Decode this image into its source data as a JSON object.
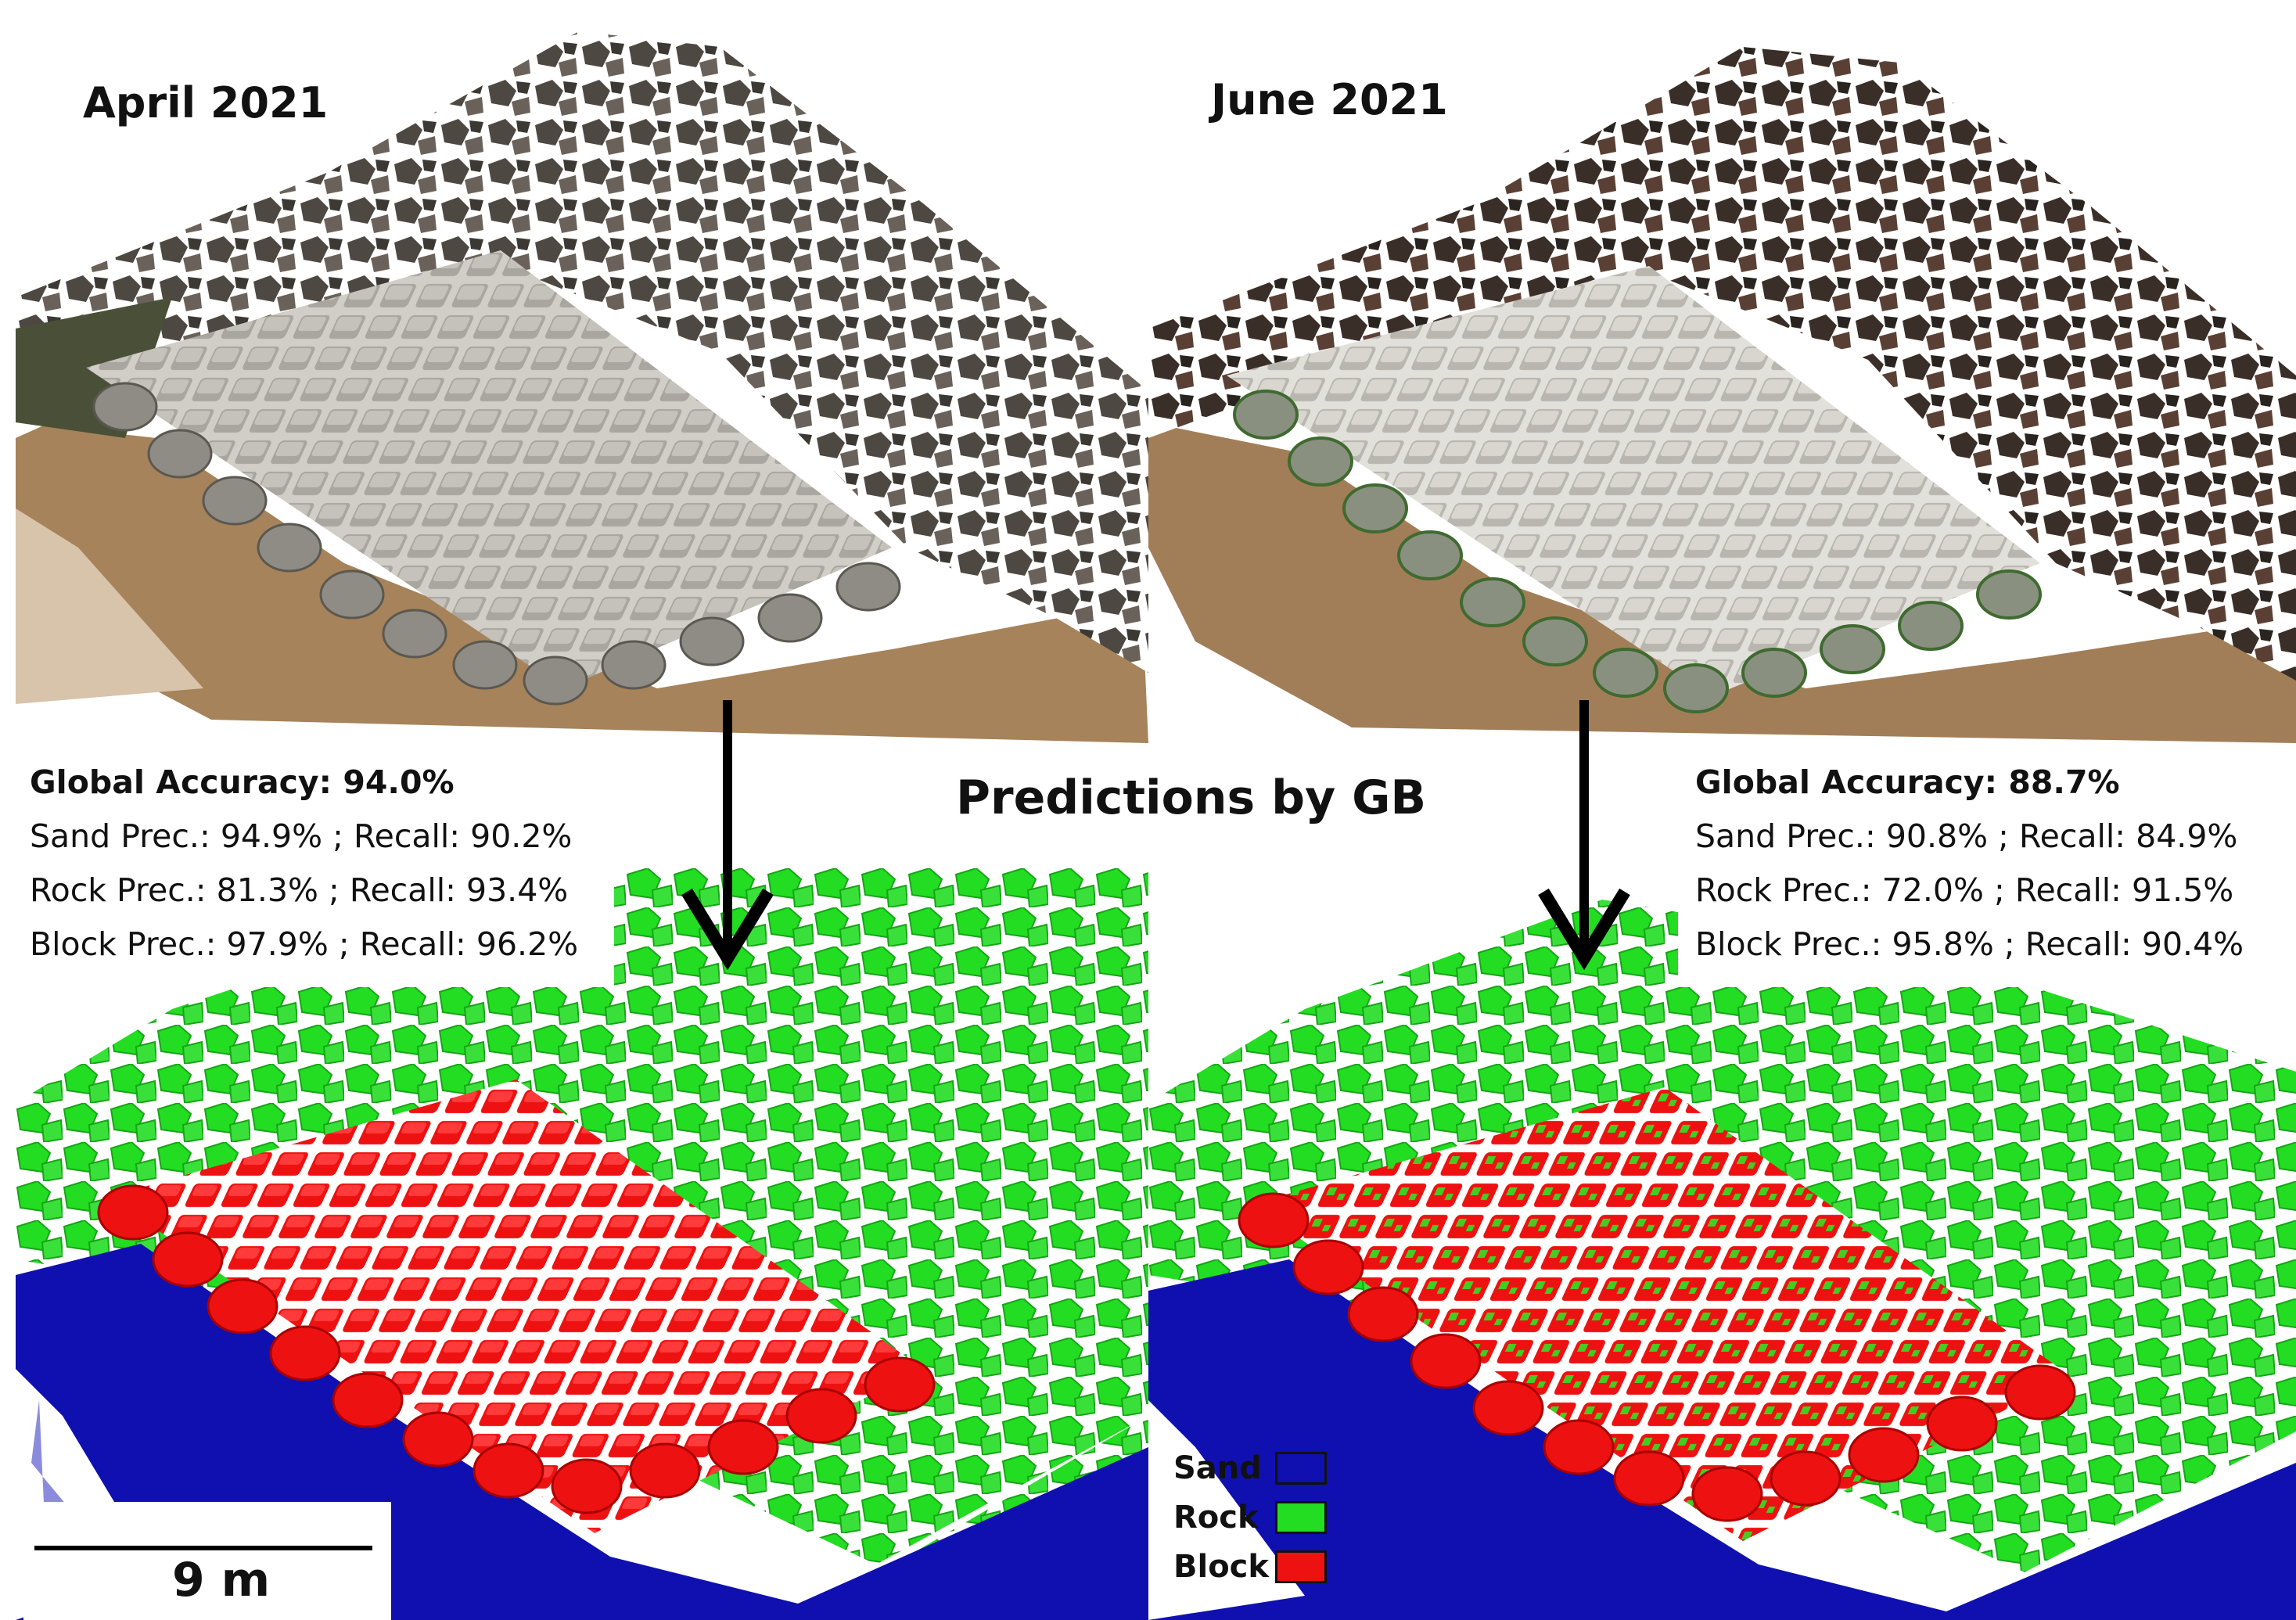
{
  "panels": {
    "top_left": {
      "title": "April 2021"
    },
    "top_right": {
      "title": "June 2021"
    }
  },
  "center_title": "Predictions by GB",
  "metrics_april": {
    "global_label": "Global Accuracy:",
    "global_value": "94.0%",
    "rows": [
      {
        "label": "Sand Prec.:",
        "precision": "94.9%",
        "recall_label": "Recall:",
        "recall": "90.2%"
      },
      {
        "label": "Rock Prec.:",
        "precision": "81.3%",
        "recall_label": "Recall:",
        "recall": "93.4%"
      },
      {
        "label": "Block Prec.:",
        "precision": "97.9%",
        "recall_label": "Recall:",
        "recall": "96.2%"
      }
    ]
  },
  "metrics_june": {
    "global_label": "Global Accuracy:",
    "global_value": "88.7%",
    "rows": [
      {
        "label": "Sand Prec.:",
        "precision": "90.8%",
        "recall_label": "Recall:",
        "recall": "84.9%"
      },
      {
        "label": "Rock Prec.:",
        "precision": "72.0%",
        "recall_label": "Recall:",
        "recall": "91.5%"
      },
      {
        "label": "Block Prec.:",
        "precision": "95.8%",
        "recall_label": "Recall:",
        "recall": "90.4%"
      }
    ]
  },
  "scale_bar": {
    "label": "9 m"
  },
  "legend": [
    {
      "label": "Sand",
      "color": "#1010b0"
    },
    {
      "label": "Rock",
      "color": "#22dd22"
    },
    {
      "label": "Block",
      "color": "#ee1111"
    }
  ],
  "colors": {
    "sand": "#1010b0",
    "rock": "#22dd22",
    "block": "#ee1111",
    "beach": "#a0805a",
    "concrete": "#9a9890",
    "stone": "#4a4540"
  },
  "icons": {
    "arrow": "arrow-down-icon"
  }
}
